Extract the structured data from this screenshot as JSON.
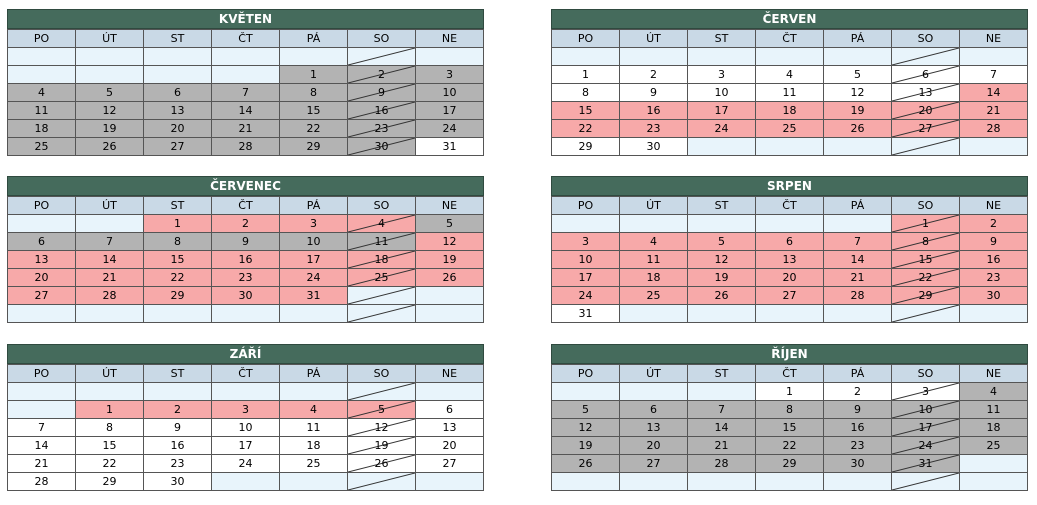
{
  "weekday_headers": [
    "PO",
    "ÚT",
    "ST",
    "ČT",
    "PÁ",
    "SO",
    "NE"
  ],
  "colors": {
    "title_bar": "#456b5c",
    "header_row": "#c9d9e6",
    "empty_cell": "#e8f4fb",
    "white_cell": "#ffffff",
    "gray_cell": "#b3b3b3",
    "pink_cell": "#f7a9a9"
  },
  "months": [
    {
      "name": "KVĚTEN",
      "rows": [
        [
          [
            "",
            ""
          ],
          [
            "",
            ""
          ],
          [
            "",
            ""
          ],
          [
            "",
            ""
          ],
          [
            "",
            ""
          ],
          [
            "",
            ""
          ],
          [
            "",
            ""
          ]
        ],
        [
          [
            "",
            ""
          ],
          [
            "",
            ""
          ],
          [
            "",
            ""
          ],
          [
            "",
            ""
          ],
          [
            "1",
            "g"
          ],
          [
            "2",
            "g"
          ],
          [
            "3",
            "g"
          ]
        ],
        [
          [
            "4",
            "g"
          ],
          [
            "5",
            "g"
          ],
          [
            "6",
            "g"
          ],
          [
            "7",
            "g"
          ],
          [
            "8",
            "g"
          ],
          [
            "9",
            "g"
          ],
          [
            "10",
            "g"
          ]
        ],
        [
          [
            "11",
            "g"
          ],
          [
            "12",
            "g"
          ],
          [
            "13",
            "g"
          ],
          [
            "14",
            "g"
          ],
          [
            "15",
            "g"
          ],
          [
            "16",
            "g"
          ],
          [
            "17",
            "g"
          ]
        ],
        [
          [
            "18",
            "g"
          ],
          [
            "19",
            "g"
          ],
          [
            "20",
            "g"
          ],
          [
            "21",
            "g"
          ],
          [
            "22",
            "g"
          ],
          [
            "23",
            "g"
          ],
          [
            "24",
            "g"
          ]
        ],
        [
          [
            "25",
            "g"
          ],
          [
            "26",
            "g"
          ],
          [
            "27",
            "g"
          ],
          [
            "28",
            "g"
          ],
          [
            "29",
            "g"
          ],
          [
            "30",
            "g"
          ],
          [
            "31",
            "w"
          ]
        ]
      ]
    },
    {
      "name": "ČERVEN",
      "rows": [
        [
          [
            "",
            ""
          ],
          [
            "",
            ""
          ],
          [
            "",
            ""
          ],
          [
            "",
            ""
          ],
          [
            "",
            ""
          ],
          [
            "",
            ""
          ],
          [
            "",
            ""
          ]
        ],
        [
          [
            "1",
            "w"
          ],
          [
            "2",
            "w"
          ],
          [
            "3",
            "w"
          ],
          [
            "4",
            "w"
          ],
          [
            "5",
            "w"
          ],
          [
            "6",
            "w"
          ],
          [
            "7",
            "w"
          ]
        ],
        [
          [
            "8",
            "w"
          ],
          [
            "9",
            "w"
          ],
          [
            "10",
            "w"
          ],
          [
            "11",
            "w"
          ],
          [
            "12",
            "w"
          ],
          [
            "13",
            "w"
          ],
          [
            "14",
            "p"
          ]
        ],
        [
          [
            "15",
            "p"
          ],
          [
            "16",
            "p"
          ],
          [
            "17",
            "p"
          ],
          [
            "18",
            "p"
          ],
          [
            "19",
            "p"
          ],
          [
            "20",
            "p"
          ],
          [
            "21",
            "p"
          ]
        ],
        [
          [
            "22",
            "p"
          ],
          [
            "23",
            "p"
          ],
          [
            "24",
            "p"
          ],
          [
            "25",
            "p"
          ],
          [
            "26",
            "p"
          ],
          [
            "27",
            "p"
          ],
          [
            "28",
            "p"
          ]
        ],
        [
          [
            "29",
            "w"
          ],
          [
            "30",
            "w"
          ],
          [
            "",
            ""
          ],
          [
            "",
            ""
          ],
          [
            "",
            ""
          ],
          [
            "",
            ""
          ],
          [
            "",
            ""
          ]
        ]
      ]
    },
    {
      "name": "ČERVENEC",
      "rows": [
        [
          [
            "",
            ""
          ],
          [
            "",
            ""
          ],
          [
            "1",
            "p"
          ],
          [
            "2",
            "p"
          ],
          [
            "3",
            "p"
          ],
          [
            "4",
            "p"
          ],
          [
            "5",
            "g"
          ]
        ],
        [
          [
            "6",
            "g"
          ],
          [
            "7",
            "g"
          ],
          [
            "8",
            "g"
          ],
          [
            "9",
            "g"
          ],
          [
            "10",
            "g"
          ],
          [
            "11",
            "g"
          ],
          [
            "12",
            "p"
          ]
        ],
        [
          [
            "13",
            "p"
          ],
          [
            "14",
            "p"
          ],
          [
            "15",
            "p"
          ],
          [
            "16",
            "p"
          ],
          [
            "17",
            "p"
          ],
          [
            "18",
            "p"
          ],
          [
            "19",
            "p"
          ]
        ],
        [
          [
            "20",
            "p"
          ],
          [
            "21",
            "p"
          ],
          [
            "22",
            "p"
          ],
          [
            "23",
            "p"
          ],
          [
            "24",
            "p"
          ],
          [
            "25",
            "p"
          ],
          [
            "26",
            "p"
          ]
        ],
        [
          [
            "27",
            "p"
          ],
          [
            "28",
            "p"
          ],
          [
            "29",
            "p"
          ],
          [
            "30",
            "p"
          ],
          [
            "31",
            "p"
          ],
          [
            "",
            ""
          ],
          [
            "",
            ""
          ]
        ],
        [
          [
            "",
            ""
          ],
          [
            "",
            ""
          ],
          [
            "",
            ""
          ],
          [
            "",
            ""
          ],
          [
            "",
            ""
          ],
          [
            "",
            ""
          ],
          [
            "",
            ""
          ]
        ]
      ]
    },
    {
      "name": "SRPEN",
      "rows": [
        [
          [
            "",
            ""
          ],
          [
            "",
            ""
          ],
          [
            "",
            ""
          ],
          [
            "",
            ""
          ],
          [
            "",
            ""
          ],
          [
            "1",
            "p"
          ],
          [
            "2",
            "p"
          ]
        ],
        [
          [
            "3",
            "p"
          ],
          [
            "4",
            "p"
          ],
          [
            "5",
            "p"
          ],
          [
            "6",
            "p"
          ],
          [
            "7",
            "p"
          ],
          [
            "8",
            "p"
          ],
          [
            "9",
            "p"
          ]
        ],
        [
          [
            "10",
            "p"
          ],
          [
            "11",
            "p"
          ],
          [
            "12",
            "p"
          ],
          [
            "13",
            "p"
          ],
          [
            "14",
            "p"
          ],
          [
            "15",
            "p"
          ],
          [
            "16",
            "p"
          ]
        ],
        [
          [
            "17",
            "p"
          ],
          [
            "18",
            "p"
          ],
          [
            "19",
            "p"
          ],
          [
            "20",
            "p"
          ],
          [
            "21",
            "p"
          ],
          [
            "22",
            "p"
          ],
          [
            "23",
            "p"
          ]
        ],
        [
          [
            "24",
            "p"
          ],
          [
            "25",
            "p"
          ],
          [
            "26",
            "p"
          ],
          [
            "27",
            "p"
          ],
          [
            "28",
            "p"
          ],
          [
            "29",
            "p"
          ],
          [
            "30",
            "p"
          ]
        ],
        [
          [
            "31",
            "w"
          ],
          [
            "",
            ""
          ],
          [
            "",
            ""
          ],
          [
            "",
            ""
          ],
          [
            "",
            ""
          ],
          [
            "",
            ""
          ],
          [
            "",
            ""
          ]
        ]
      ]
    },
    {
      "name": "ZÁŘÍ",
      "rows": [
        [
          [
            "",
            ""
          ],
          [
            "",
            ""
          ],
          [
            "",
            ""
          ],
          [
            "",
            ""
          ],
          [
            "",
            ""
          ],
          [
            "",
            ""
          ],
          [
            "",
            ""
          ]
        ],
        [
          [
            "",
            ""
          ],
          [
            "1",
            "p"
          ],
          [
            "2",
            "p"
          ],
          [
            "3",
            "p"
          ],
          [
            "4",
            "p"
          ],
          [
            "5",
            "p"
          ],
          [
            "6",
            "w"
          ]
        ],
        [
          [
            "7",
            "w"
          ],
          [
            "8",
            "w"
          ],
          [
            "9",
            "w"
          ],
          [
            "10",
            "w"
          ],
          [
            "11",
            "w"
          ],
          [
            "12",
            "w"
          ],
          [
            "13",
            "w"
          ]
        ],
        [
          [
            "14",
            "w"
          ],
          [
            "15",
            "w"
          ],
          [
            "16",
            "w"
          ],
          [
            "17",
            "w"
          ],
          [
            "18",
            "w"
          ],
          [
            "19",
            "w"
          ],
          [
            "20",
            "w"
          ]
        ],
        [
          [
            "21",
            "w"
          ],
          [
            "22",
            "w"
          ],
          [
            "23",
            "w"
          ],
          [
            "24",
            "w"
          ],
          [
            "25",
            "w"
          ],
          [
            "26",
            "w"
          ],
          [
            "27",
            "w"
          ]
        ],
        [
          [
            "28",
            "w"
          ],
          [
            "29",
            "w"
          ],
          [
            "30",
            "w"
          ],
          [
            "",
            ""
          ],
          [
            "",
            ""
          ],
          [
            "",
            ""
          ],
          [
            "",
            ""
          ]
        ]
      ]
    },
    {
      "name": "ŘÍJEN",
      "rows": [
        [
          [
            "",
            ""
          ],
          [
            "",
            ""
          ],
          [
            "",
            ""
          ],
          [
            "1",
            "w"
          ],
          [
            "2",
            "w"
          ],
          [
            "3",
            "w"
          ],
          [
            "4",
            "g"
          ]
        ],
        [
          [
            "5",
            "g"
          ],
          [
            "6",
            "g"
          ],
          [
            "7",
            "g"
          ],
          [
            "8",
            "g"
          ],
          [
            "9",
            "g"
          ],
          [
            "10",
            "g"
          ],
          [
            "11",
            "g"
          ]
        ],
        [
          [
            "12",
            "g"
          ],
          [
            "13",
            "g"
          ],
          [
            "14",
            "g"
          ],
          [
            "15",
            "g"
          ],
          [
            "16",
            "g"
          ],
          [
            "17",
            "g"
          ],
          [
            "18",
            "g"
          ]
        ],
        [
          [
            "19",
            "g"
          ],
          [
            "20",
            "g"
          ],
          [
            "21",
            "g"
          ],
          [
            "22",
            "g"
          ],
          [
            "23",
            "g"
          ],
          [
            "24",
            "g"
          ],
          [
            "25",
            "g"
          ]
        ],
        [
          [
            "26",
            "g"
          ],
          [
            "27",
            "g"
          ],
          [
            "28",
            "g"
          ],
          [
            "29",
            "g"
          ],
          [
            "30",
            "g"
          ],
          [
            "31",
            "g"
          ],
          [
            "",
            ""
          ]
        ],
        [
          [
            "",
            ""
          ],
          [
            "",
            ""
          ],
          [
            "",
            ""
          ],
          [
            "",
            ""
          ],
          [
            "",
            ""
          ],
          [
            "",
            ""
          ],
          [
            "",
            ""
          ]
        ]
      ]
    }
  ]
}
